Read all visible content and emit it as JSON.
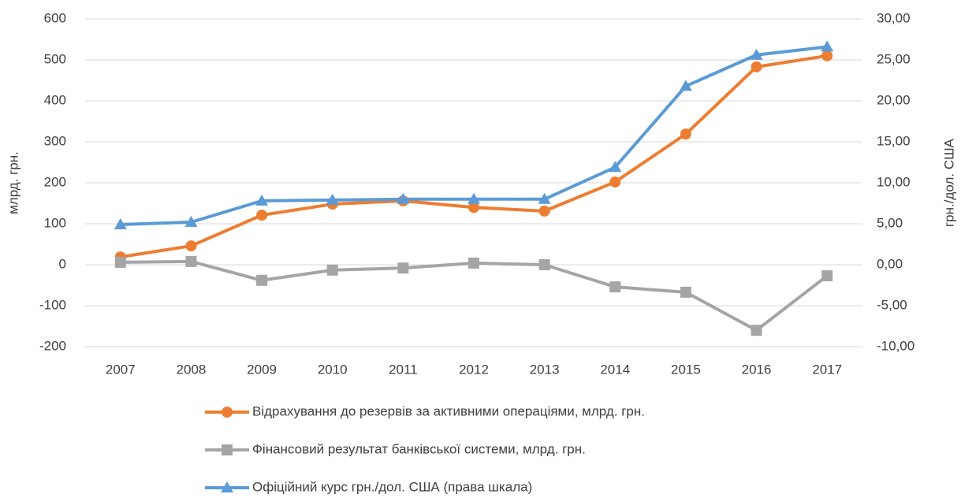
{
  "chart_data": {
    "type": "line",
    "ylabel": "млрд. грн.",
    "y2label": "грн./дол. США",
    "categories": [
      "2007",
      "2008",
      "2009",
      "2010",
      "2011",
      "2012",
      "2013",
      "2014",
      "2015",
      "2016",
      "2017"
    ],
    "series": [
      {
        "name": "Відрахування до резервів за активними операціями, млрд. грн.",
        "color": "#ed7d31",
        "marker": "circle",
        "values": [
          19,
          46,
          121,
          148,
          156,
          140,
          131,
          202,
          319,
          483,
          510
        ]
      },
      {
        "name": "Фінансовий результат банківської системи, млрд. грн.",
        "color": "#a5a5a5",
        "marker": "square",
        "values": [
          6,
          8,
          -38,
          -13,
          -8,
          4,
          0,
          -54,
          -67,
          -160,
          -27
        ]
      },
      {
        "name": "Офіційний курс грн./дол. США (права шкала)",
        "color": "#5b9bd5",
        "marker": "triangle",
        "axis": "y2",
        "values": [
          4.9,
          5.2,
          7.8,
          7.9,
          8.0,
          8.0,
          8.0,
          11.9,
          21.8,
          25.6,
          26.6
        ]
      }
    ],
    "ylim": [
      -200,
      600
    ],
    "yticks": [
      -200,
      -100,
      0,
      100,
      200,
      300,
      400,
      500,
      600
    ],
    "y2lim": [
      -10,
      30
    ],
    "y2ticks": [
      {
        "value": -10,
        "label": "-10,00"
      },
      {
        "value": -5,
        "label": "-5,00"
      },
      {
        "value": 0,
        "label": "0,00"
      },
      {
        "value": 5,
        "label": "5,00"
      },
      {
        "value": 10,
        "label": "10,00"
      },
      {
        "value": 15,
        "label": "15,00"
      },
      {
        "value": 20,
        "label": "20,00"
      },
      {
        "value": 25,
        "label": "25,00"
      },
      {
        "value": 30,
        "label": "30,00"
      }
    ],
    "grid": true,
    "legend": "bottom"
  }
}
